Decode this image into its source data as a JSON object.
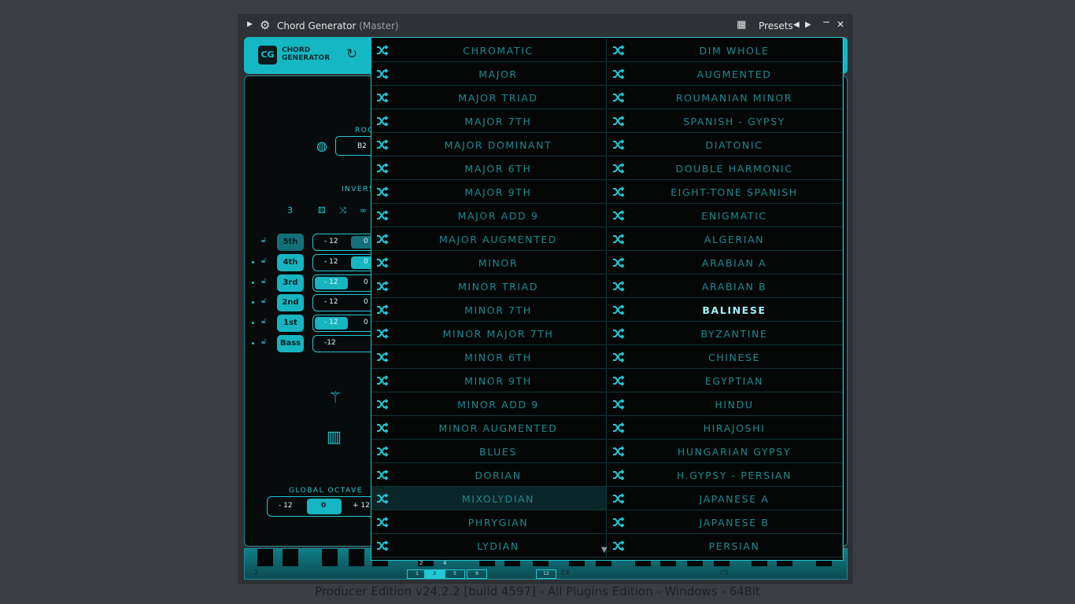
{
  "window": {
    "title": "Chord Generator",
    "subtitle": "(Master)",
    "presets_label": "Presets"
  },
  "header": {
    "logo": "CG",
    "name_line1": "CHORD",
    "name_line2": "GENERATOR"
  },
  "left": {
    "root_label": "ROO",
    "root_value": "B2",
    "inversion_label": "INVERS",
    "count": "3",
    "voices": [
      {
        "label": "5th",
        "low": "- 12",
        "mid": "0",
        "active": false
      },
      {
        "label": "4th",
        "low": "- 12",
        "mid": "0",
        "active": true
      },
      {
        "label": "3rd",
        "low": "- 12",
        "mid": "0",
        "active": true
      },
      {
        "label": "2nd",
        "low": "- 12",
        "mid": "0",
        "active": true
      },
      {
        "label": "1st",
        "low": "- 12",
        "mid": "0",
        "active": true
      },
      {
        "label": "Bass",
        "low": "-12",
        "mid": "",
        "active": true
      }
    ],
    "global_octave": {
      "label": "GLOBAL OCTAVE",
      "minus": "- 12",
      "value": "0",
      "plus": "+ 12"
    }
  },
  "scales": {
    "left": [
      "CHROMATIC",
      "MAJOR",
      "MAJOR TRIAD",
      "MAJOR 7TH",
      "MAJOR DOMINANT",
      "MAJOR 6TH",
      "MAJOR 9TH",
      "MAJOR ADD 9",
      "MAJOR AUGMENTED",
      "MINOR",
      "MINOR TRIAD",
      "MINOR 7TH",
      "MINOR MAJOR 7TH",
      "MINOR 6TH",
      "MINOR 9TH",
      "MINOR ADD 9",
      "MINOR AUGMENTED",
      "BLUES",
      "DORIAN",
      "MIXOLYDIAN",
      "PHRYGIAN",
      "LYDIAN"
    ],
    "right": [
      "DIM WHOLE",
      "AUGMENTED",
      "ROUMANIAN MINOR",
      "SPANISH - GYPSY",
      "DIATONIC",
      "DOUBLE HARMONIC",
      "EIGHT-TONE SPANISH",
      "ENIGMATIC",
      "ALGERIAN",
      "ARABIAN A",
      "ARABIAN B",
      "BALINESE",
      "BYZANTINE",
      "CHINESE",
      "EGYPTIAN",
      "HINDU",
      "HIRAJOSHI",
      "HUNGARIAN GYPSY",
      "H.GYPSY - PERSIAN",
      "JAPANESE A",
      "JAPANESE B",
      "PERSIAN"
    ],
    "hovered": "MIXOLYDIAN",
    "selected": "BALINESE"
  },
  "keyboard": {
    "numbers": [
      "1",
      "3",
      "5",
      "6",
      "12"
    ],
    "upper": [
      "2",
      "4"
    ],
    "notes": [
      "2",
      "C4",
      "C5"
    ],
    "active_number": "3"
  },
  "footer": "Producer Edition v24.2.2 [build 4597] - All Plugins Edition - Windows - 64Bit",
  "colors": {
    "accent": "#22c7d3",
    "header": "#14b8c4",
    "background": "#080b0c"
  }
}
